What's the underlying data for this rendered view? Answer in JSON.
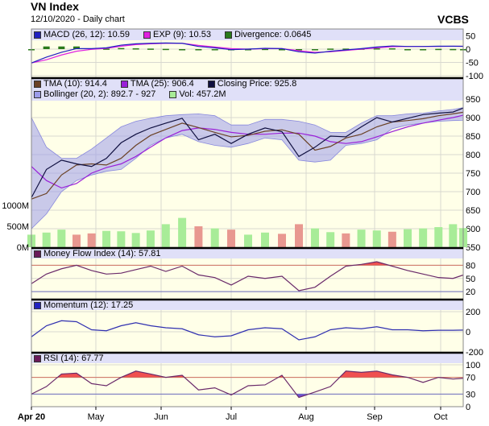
{
  "header": {
    "title": "VN Index",
    "subtitle": "12/10/2020 - Daily chart",
    "brand": "VCBS"
  },
  "colors": {
    "panel_bg": "#ffffe8",
    "legend_bg": "#e0e0f8",
    "macd": "#2020c0",
    "exp": "#e020e0",
    "divergence": "#2a7a1a",
    "tma10": "#6b4226",
    "tma25": "#9a20d8",
    "close": "#101040",
    "bollinger": "#9c9cea",
    "vol_up": "#a8ec98",
    "vol_down": "#e89890",
    "mfi": "#6a2a6a",
    "momentum": "#3030b0",
    "rsi": "#6a2a6a",
    "overbought": "#f05050",
    "oversold": "#7050d0"
  },
  "legends": {
    "macd": [
      {
        "label": "MACD (26, 12): 10.59",
        "color": "#2020c0"
      },
      {
        "label": "EXP (9): 10.53",
        "color": "#e020e0"
      },
      {
        "label": "Divergence: 0.0645",
        "color": "#2a7a1a"
      }
    ],
    "price_row1": [
      {
        "label": "TMA (10): 914.4",
        "color": "#6b4226"
      },
      {
        "label": "TMA (25): 906.4",
        "color": "#9a20d8"
      },
      {
        "label": "Closing Price: 925.8",
        "color": "#101040"
      }
    ],
    "price_row2": [
      {
        "label": "Bollinger (20, 2): 892.7 - 927",
        "color": "#9c9cea"
      },
      {
        "label": "Vol: 457.2M",
        "color": "#a8ec98"
      }
    ],
    "mfi": [
      {
        "label": "Money Flow Index (14): 57.81",
        "color": "#6a1a5a"
      }
    ],
    "momentum": [
      {
        "label": "Momentum (12): 17.25",
        "color": "#2020c0"
      }
    ],
    "rsi": [
      {
        "label": "RSI (14): 67.77",
        "color": "#6a1a5a"
      }
    ]
  },
  "chart_data": {
    "type": "line",
    "x_tick_labels": [
      "Apr 20",
      "May",
      "Jun",
      "Jul",
      "Aug",
      "Sep",
      "Oct"
    ],
    "dates": [
      "2020-04-01",
      "2020-04-08",
      "2020-04-15",
      "2020-04-22",
      "2020-04-29",
      "2020-05-06",
      "2020-05-13",
      "2020-05-20",
      "2020-05-27",
      "2020-06-03",
      "2020-06-10",
      "2020-06-17",
      "2020-06-24",
      "2020-07-01",
      "2020-07-08",
      "2020-07-15",
      "2020-07-22",
      "2020-07-29",
      "2020-08-05",
      "2020-08-12",
      "2020-08-19",
      "2020-08-26",
      "2020-09-02",
      "2020-09-09",
      "2020-09-16",
      "2020-09-23",
      "2020-09-30",
      "2020-10-07",
      "2020-10-12"
    ],
    "panels": {
      "macd": {
        "ylim": [
          -100,
          50
        ],
        "ticks": [
          "50",
          "0",
          "-50",
          "-100"
        ],
        "tick_values": [
          50,
          0,
          -50,
          -100
        ],
        "macd": [
          -52,
          -30,
          -12,
          2,
          2,
          5,
          15,
          20,
          22,
          23,
          22,
          10,
          5,
          -2,
          0,
          3,
          2,
          -10,
          -15,
          -8,
          -3,
          2,
          8,
          12,
          10,
          10,
          11,
          11,
          10.59
        ],
        "exp": [
          -52,
          -40,
          -22,
          -8,
          -1,
          3,
          11,
          17,
          20,
          22,
          22,
          14,
          8,
          2,
          0,
          2,
          2,
          -6,
          -12,
          -10,
          -5,
          0,
          5,
          9,
          10,
          10,
          10,
          10.5,
          10.53
        ],
        "divergence": [
          0,
          10,
          10,
          10,
          3,
          2,
          4,
          3,
          2,
          1,
          0,
          -4,
          -3,
          -4,
          0,
          1,
          0,
          -4,
          -3,
          2,
          2,
          2,
          3,
          3,
          0,
          0,
          1,
          0.5,
          0.0645
        ]
      },
      "price": {
        "ylim": [
          550,
          950
        ],
        "ticks": [
          "950",
          "900",
          "850",
          "800",
          "750",
          "700",
          "650",
          "600",
          "550"
        ],
        "tick_values": [
          950,
          900,
          850,
          800,
          750,
          700,
          650,
          600,
          550
        ],
        "close": [
          684,
          760,
          785,
          775,
          768,
          790,
          832,
          855,
          872,
          885,
          898,
          840,
          855,
          830,
          855,
          872,
          862,
          795,
          820,
          850,
          848,
          875,
          900,
          888,
          898,
          908,
          912,
          915,
          925.8
        ],
        "tma10": [
          680,
          695,
          745,
          772,
          775,
          772,
          790,
          825,
          852,
          868,
          885,
          873,
          860,
          848,
          852,
          863,
          867,
          855,
          812,
          822,
          845,
          855,
          875,
          888,
          892,
          897,
          905,
          910,
          914.4
        ],
        "tma25": [
          768,
          730,
          710,
          722,
          750,
          765,
          775,
          795,
          820,
          845,
          865,
          872,
          868,
          860,
          855,
          855,
          858,
          858,
          850,
          835,
          830,
          835,
          848,
          862,
          875,
          885,
          893,
          900,
          906.4
        ],
        "bollinger_upper": [
          900,
          820,
          790,
          790,
          815,
          845,
          875,
          890,
          898,
          905,
          908,
          910,
          905,
          880,
          880,
          895,
          895,
          890,
          880,
          860,
          860,
          885,
          905,
          905,
          910,
          912,
          918,
          922,
          927
        ],
        "bollinger_lower": [
          600,
          640,
          700,
          730,
          745,
          755,
          760,
          790,
          825,
          845,
          855,
          835,
          825,
          820,
          830,
          845,
          840,
          785,
          780,
          785,
          825,
          830,
          840,
          870,
          880,
          885,
          890,
          892,
          892.7
        ]
      },
      "volume": {
        "unit": "M",
        "ticks": [
          "1000M",
          "500M",
          "0M"
        ],
        "tick_values": [
          1000,
          500,
          0
        ],
        "values": [
          300,
          350,
          420,
          300,
          330,
          390,
          380,
          340,
          400,
          550,
          700,
          500,
          450,
          420,
          300,
          350,
          320,
          550,
          450,
          360,
          330,
          420,
          400,
          370,
          430,
          450,
          480,
          550,
          457.2
        ]
      },
      "mfi": {
        "ylim": [
          0,
          100
        ],
        "ticks": [
          "80",
          "50",
          "20"
        ],
        "tick_values": [
          80,
          50,
          20
        ],
        "overbought": 80,
        "oversold": 20,
        "values": [
          38,
          60,
          72,
          80,
          68,
          60,
          62,
          70,
          78,
          66,
          78,
          58,
          52,
          35,
          55,
          50,
          55,
          22,
          30,
          55,
          78,
          82,
          88,
          78,
          68,
          60,
          52,
          50,
          57.81
        ]
      },
      "momentum": {
        "ylim": [
          -200,
          250
        ],
        "ticks": [
          "200",
          "0",
          "-200"
        ],
        "tick_values": [
          200,
          0,
          -200
        ],
        "values": [
          -50,
          60,
          110,
          100,
          20,
          10,
          60,
          90,
          60,
          40,
          30,
          -30,
          -50,
          -40,
          20,
          40,
          30,
          -80,
          -50,
          20,
          40,
          30,
          50,
          20,
          20,
          10,
          15,
          15,
          17.25
        ]
      },
      "rsi": {
        "ylim": [
          0,
          110
        ],
        "ticks": [
          "100",
          "70",
          "30",
          "0"
        ],
        "tick_values": [
          100,
          70,
          30,
          0
        ],
        "overbought": 70,
        "oversold": 30,
        "values": [
          30,
          48,
          78,
          80,
          55,
          50,
          70,
          85,
          78,
          70,
          75,
          40,
          45,
          28,
          50,
          52,
          75,
          22,
          35,
          48,
          85,
          82,
          85,
          76,
          70,
          58,
          70,
          66,
          67.77
        ]
      }
    }
  }
}
